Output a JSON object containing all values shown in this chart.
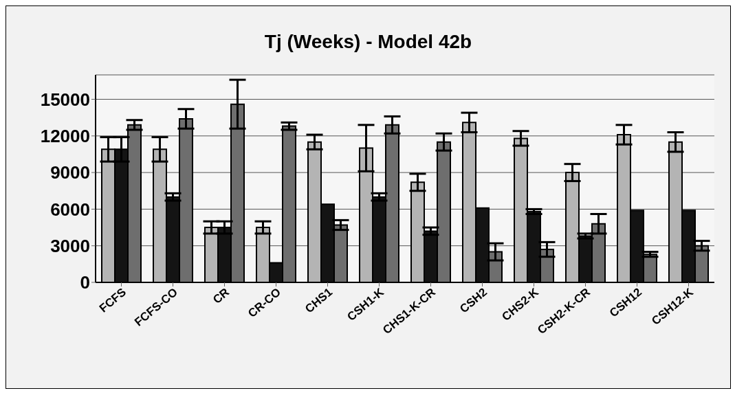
{
  "chart_data": {
    "type": "bar",
    "title": "Tj (Weeks) - Model 42b",
    "categories": [
      "FCFS",
      "FCFS-CO",
      "CR",
      "CR-CO",
      "CHS1",
      "CSH1-K",
      "CHS1-K-CR",
      "CSH2",
      "CHS2-K",
      "CSH2-K-CR",
      "CSH12",
      "CSH12-K"
    ],
    "series": [
      {
        "color": "#b4b4b4",
        "values": [
          10900,
          10900,
          4500,
          4500,
          11500,
          11000,
          8200,
          13100,
          11800,
          9000,
          12100,
          11500
        ],
        "errors": [
          1000,
          1000,
          500,
          500,
          600,
          1900,
          700,
          800,
          600,
          700,
          800,
          800
        ]
      },
      {
        "color": "#141414",
        "values": [
          10900,
          7000,
          4500,
          1600,
          6400,
          7000,
          4200,
          6100,
          5800,
          3800,
          5900,
          5900
        ],
        "errors": [
          1000,
          300,
          500,
          null,
          null,
          300,
          300,
          null,
          200,
          200,
          null,
          null
        ]
      },
      {
        "color": "#6e6e6e",
        "values": [
          12900,
          13400,
          14600,
          12800,
          4700,
          12900,
          11500,
          2500,
          2700,
          4800,
          2300,
          3000
        ],
        "errors": [
          400,
          800,
          2000,
          300,
          400,
          700,
          700,
          700,
          600,
          800,
          200,
          400
        ]
      }
    ],
    "ylim": [
      0,
      17000
    ],
    "yticks": [
      0,
      3000,
      6000,
      9000,
      12000,
      15000
    ],
    "grid": "y",
    "legend": false
  }
}
